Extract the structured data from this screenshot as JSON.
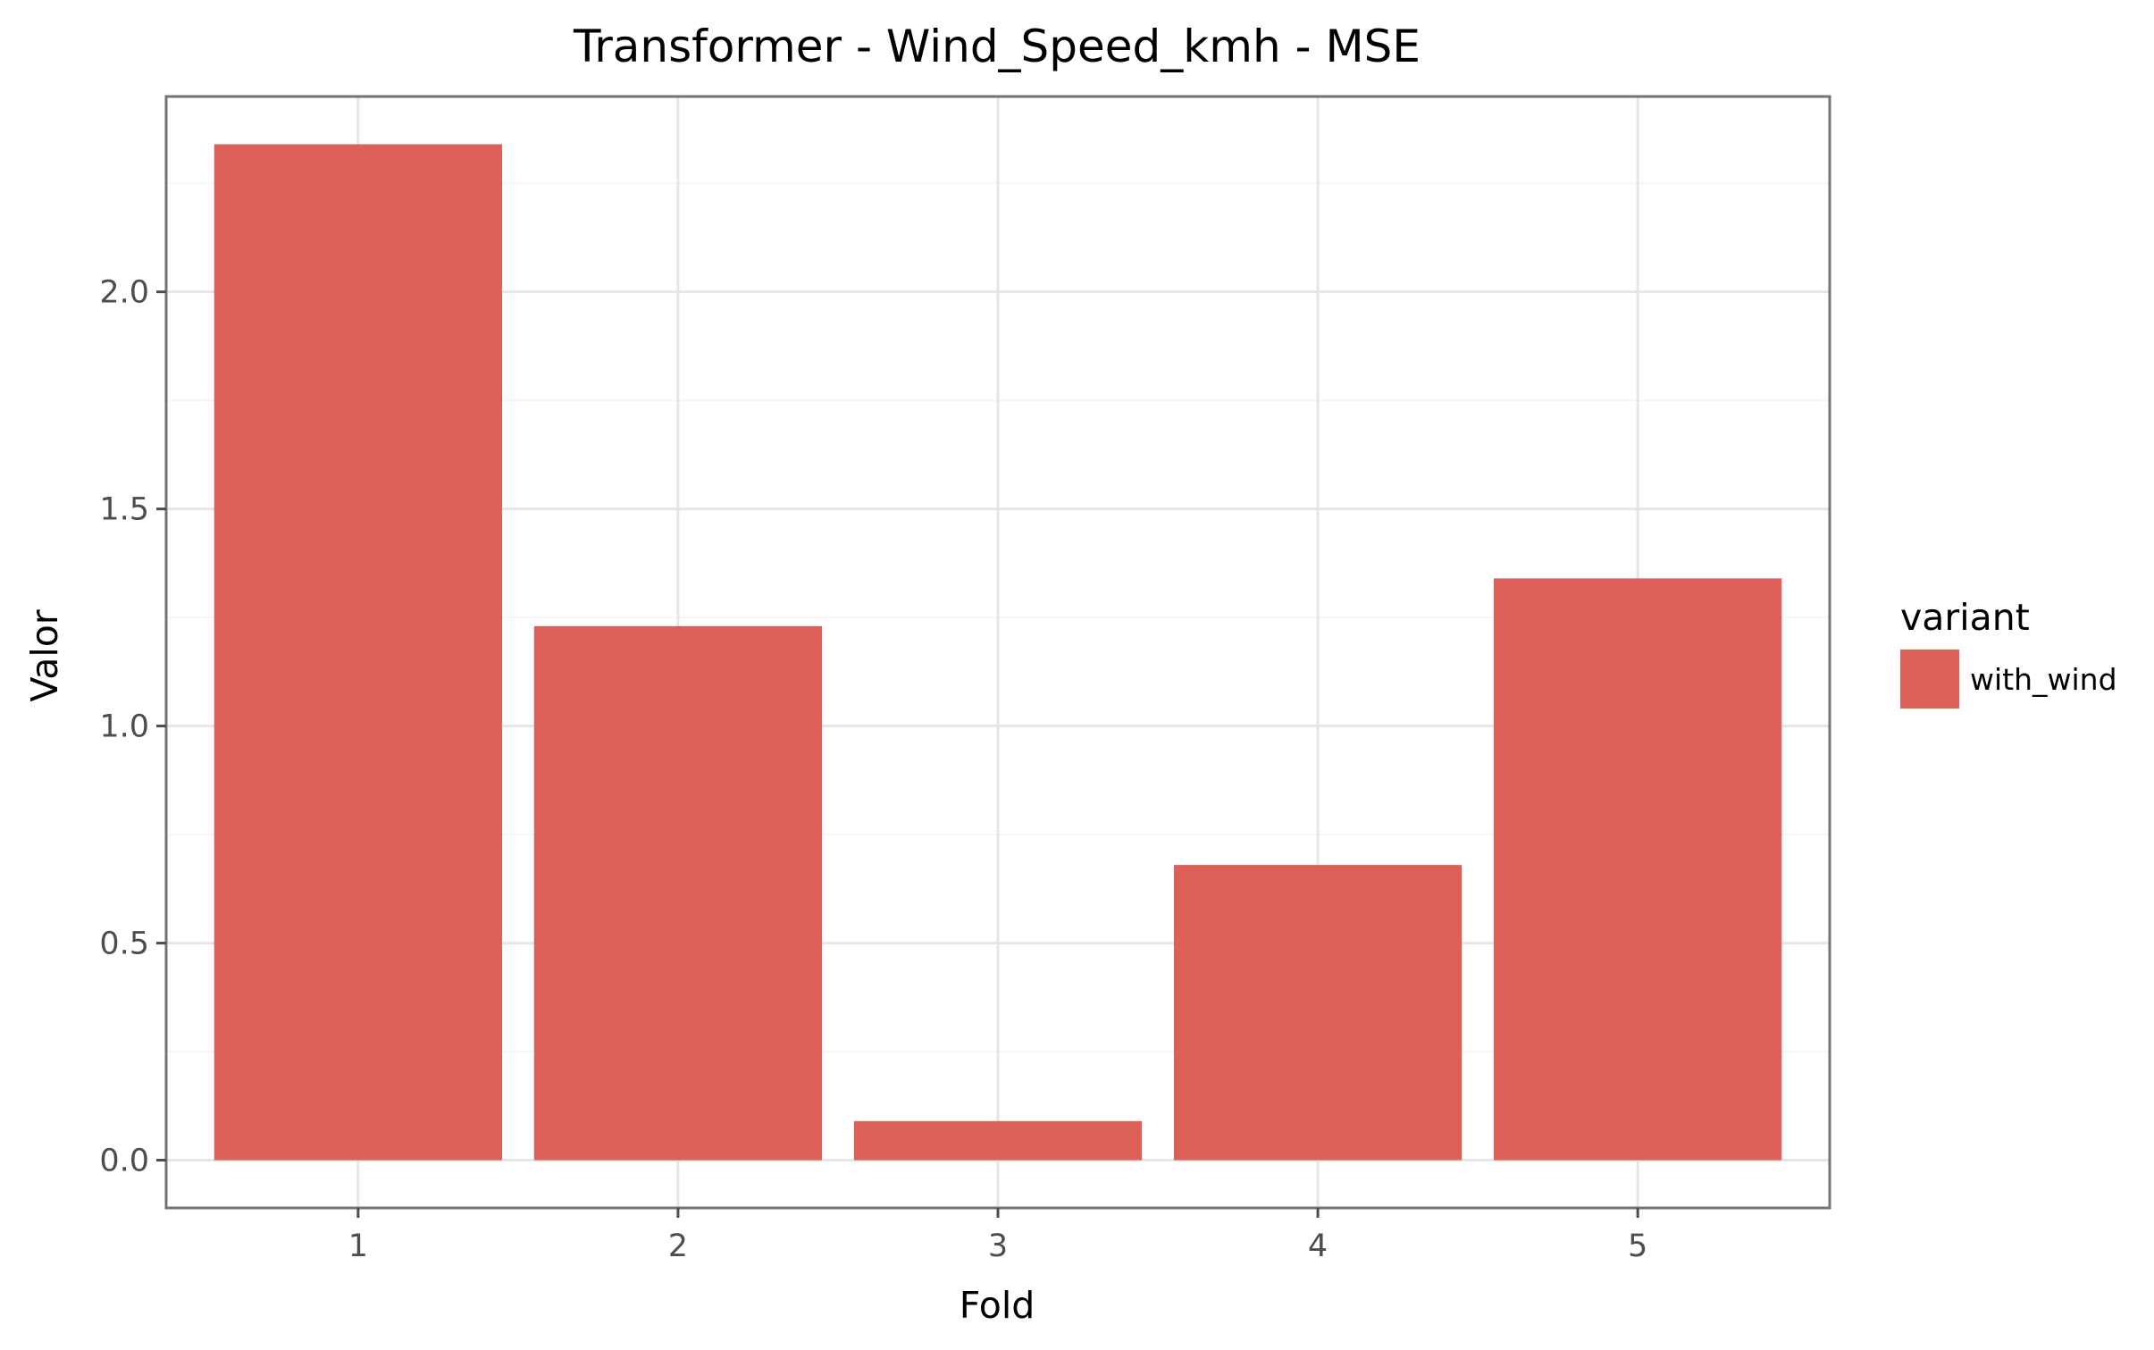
{
  "chart_data": {
    "type": "bar",
    "title": "Transformer - Wind_Speed_kmh - MSE",
    "xlabel": "Fold",
    "ylabel": "Valor",
    "categories": [
      "1",
      "2",
      "3",
      "4",
      "5"
    ],
    "series": [
      {
        "name": "with_wind",
        "values": [
          2.34,
          1.23,
          0.09,
          0.68,
          1.34
        ]
      }
    ],
    "ylim": [
      -0.11,
      2.45
    ],
    "yticks": [
      0.0,
      0.5,
      1.0,
      1.5,
      2.0
    ],
    "ytick_labels": [
      "0.0",
      "0.5",
      "1.0",
      "1.5",
      "2.0"
    ],
    "grid": true,
    "legend": {
      "title": "variant",
      "position": "right",
      "labels": [
        "with_wind"
      ]
    },
    "colors": {
      "bar": "#dc5f58",
      "panel_border": "#737373",
      "grid_major": "#e6e6e6",
      "grid_minor": "#f3f3f3",
      "tick": "#4d4d4d"
    }
  }
}
